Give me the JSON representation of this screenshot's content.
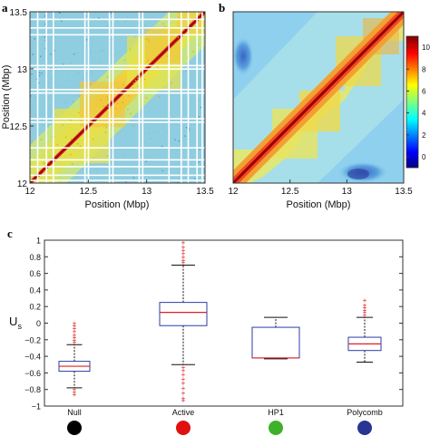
{
  "chart_data": [
    {
      "panel": "a",
      "type": "heatmap",
      "xlabel": "Position (Mbp)",
      "ylabel": "Position (Mbp)",
      "xlim": [
        12,
        13.5
      ],
      "ylim": [
        12,
        13.5
      ],
      "xticks": [
        "12",
        "12.5",
        "13",
        "13.5"
      ],
      "yticks": [
        "12",
        "12.5",
        "13",
        "13.5"
      ],
      "colormap": "jet",
      "masked_rows_color": "#ffffff"
    },
    {
      "panel": "b",
      "type": "heatmap",
      "xlabel": "Position (Mbp)",
      "xlim": [
        12,
        13.5
      ],
      "ylim": [
        12,
        13.5
      ],
      "xticks": [
        "12",
        "12.5",
        "13",
        "13.5"
      ],
      "colorbar": {
        "min": -1,
        "max": 11,
        "ticks": [
          "0",
          "2",
          "4",
          "6",
          "8",
          "10"
        ]
      },
      "colormap": "jet"
    },
    {
      "panel": "c",
      "type": "box",
      "ylabel": "U",
      "ylabel_sub": "s",
      "ylim": [
        -1,
        1
      ],
      "yticks": [
        "1",
        "0.8",
        "0.6",
        "0.4",
        "0.2",
        "0",
        "−0.2",
        "−0.4",
        "−0.6",
        "−0.8",
        "−1"
      ],
      "categories": [
        "Null",
        "Active",
        "HP1",
        "Polycomb"
      ],
      "category_colors": [
        "#000000",
        "#e01010",
        "#3fb02a",
        "#283593"
      ],
      "box_color": "#2a3ea8",
      "median_color": "#e02020",
      "outlier_color": "#e02020",
      "boxes": [
        {
          "name": "Null",
          "q1": -0.58,
          "median": -0.52,
          "q3": -0.46,
          "whisker_low": -0.78,
          "whisker_high": -0.26,
          "outliers": [
            0.0,
            -0.03,
            -0.06,
            -0.1,
            -0.14,
            -0.17,
            -0.2,
            -0.23,
            -0.8,
            -0.83,
            -0.86
          ]
        },
        {
          "name": "Active",
          "q1": -0.03,
          "median": 0.13,
          "q3": 0.25,
          "whisker_low": -0.5,
          "whisker_high": 0.7,
          "outliers": [
            0.73,
            0.76,
            0.8,
            0.84,
            0.88,
            0.92,
            0.97,
            -0.53,
            -0.57,
            -0.62,
            -0.67,
            -0.72,
            -0.78,
            -0.84,
            -0.9,
            -0.93
          ]
        },
        {
          "name": "HP1",
          "q1": -0.42,
          "median": -0.42,
          "q3": -0.05,
          "whisker_low": -0.43,
          "whisker_high": 0.07,
          "outliers": []
        },
        {
          "name": "Polycomb",
          "q1": -0.33,
          "median": -0.25,
          "q3": -0.17,
          "whisker_low": -0.47,
          "whisker_high": 0.07,
          "outliers": [
            0.1,
            0.13,
            0.16,
            0.19,
            0.22,
            0.28
          ]
        }
      ]
    }
  ],
  "panel_labels": [
    "a",
    "b",
    "c"
  ]
}
